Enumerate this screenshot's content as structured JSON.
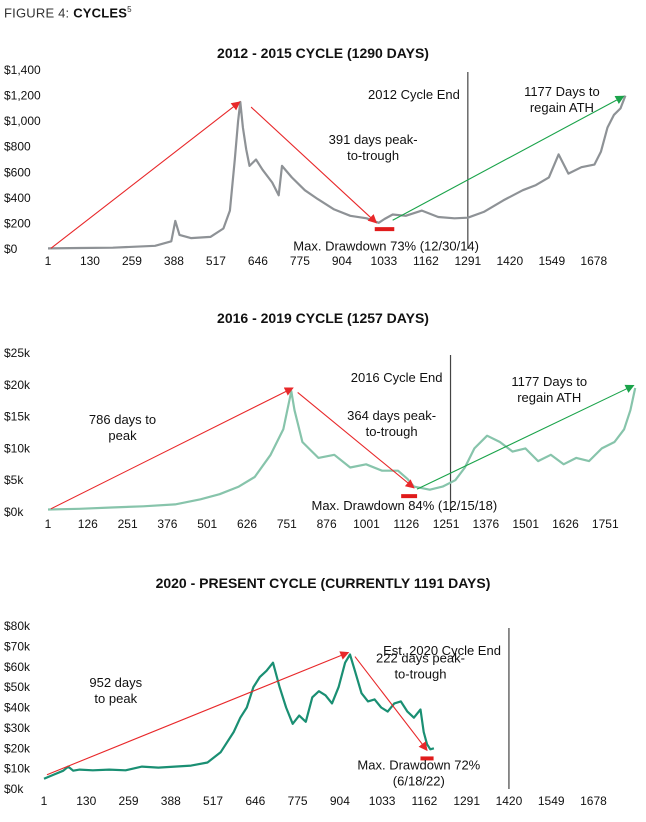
{
  "figure": {
    "prefix": "FIGURE 4:",
    "title": "CYCLES",
    "note": "5"
  },
  "colors": {
    "arrow_red": "#e8282a",
    "arrow_green": "#1aa34a",
    "bar_red": "#e01b1b",
    "cycle_line": "#444444"
  },
  "chart_data": [
    {
      "type": "line",
      "title": "2012 - 2015 CYCLE (1290 DAYS)",
      "series_color": "#8e9296",
      "xlim": [
        1,
        1820
      ],
      "ylim": [
        0,
        1400
      ],
      "x_ticks": [
        1,
        130,
        259,
        388,
        517,
        646,
        775,
        904,
        1033,
        1162,
        1291,
        1420,
        1549,
        1678
      ],
      "y_ticks": [
        0,
        200,
        400,
        600,
        800,
        1000,
        1200,
        1400
      ],
      "y_tick_labels": [
        "$0",
        "$200",
        "$400",
        "$600",
        "$800",
        "$1,000",
        "$1,200",
        "$1,400"
      ],
      "cycle_end_x": 1291,
      "cycle_end_label": "2012 Cycle End",
      "x": [
        1,
        100,
        200,
        330,
        380,
        392,
        405,
        440,
        500,
        540,
        560,
        575,
        585,
        592,
        600,
        610,
        620,
        640,
        660,
        690,
        710,
        720,
        750,
        790,
        830,
        880,
        930,
        980,
        1017,
        1035,
        1060,
        1100,
        1150,
        1200,
        1250,
        1291,
        1340,
        1400,
        1460,
        1500,
        1540,
        1570,
        1600,
        1640,
        1680,
        1700,
        1720,
        1740,
        1760,
        1775
      ],
      "y": [
        5,
        8,
        10,
        25,
        60,
        220,
        110,
        85,
        95,
        160,
        300,
        700,
        1000,
        1150,
        950,
        780,
        650,
        700,
        620,
        520,
        420,
        650,
        560,
        460,
        390,
        310,
        260,
        240,
        205,
        235,
        270,
        260,
        300,
        250,
        240,
        245,
        290,
        380,
        460,
        500,
        560,
        740,
        590,
        640,
        660,
        760,
        950,
        1050,
        1100,
        1200
      ],
      "annotations": [
        {
          "text": [
            "391 days peak-",
            "to-trough"
          ],
          "x": 1000,
          "y": 820
        },
        {
          "text": [
            "1177 Days to",
            "regain ATH"
          ],
          "x": 1580,
          "y": 1195
        },
        {
          "text": [
            "Max. Drawdown 73% (12/30/14)"
          ],
          "x": 1040,
          "y": -10
        }
      ],
      "arrows": [
        {
          "color": "red",
          "from": [
            10,
            5
          ],
          "to": [
            590,
            1150
          ]
        },
        {
          "color": "red",
          "from": [
            625,
            1110
          ],
          "to": [
            1010,
            205
          ]
        },
        {
          "color": "green",
          "from": [
            1060,
            225
          ],
          "to": [
            1770,
            1195
          ]
        }
      ],
      "bottom_marker": {
        "x0": 1005,
        "x1": 1065,
        "y": 155
      }
    },
    {
      "type": "line",
      "title": "2016 - 2019 CYCLE (1257 DAYS)",
      "series_color": "#87c4ab",
      "xlim": [
        1,
        1860
      ],
      "ylim": [
        0,
        25000
      ],
      "x_ticks": [
        1,
        126,
        251,
        376,
        501,
        626,
        751,
        876,
        1001,
        1126,
        1251,
        1376,
        1501,
        1626,
        1751
      ],
      "y_ticks": [
        0,
        5000,
        10000,
        15000,
        20000,
        25000
      ],
      "y_tick_labels": [
        "$0k",
        "$5k",
        "$10k",
        "$15k",
        "$20k",
        "$25k"
      ],
      "cycle_end_x": 1265,
      "cycle_end_label": "2016 Cycle End",
      "x": [
        1,
        100,
        200,
        300,
        400,
        480,
        540,
        600,
        650,
        700,
        740,
        765,
        775,
        785,
        800,
        820,
        850,
        900,
        950,
        1000,
        1050,
        1100,
        1130,
        1150,
        1170,
        1200,
        1240,
        1280,
        1310,
        1340,
        1380,
        1420,
        1460,
        1500,
        1540,
        1580,
        1620,
        1660,
        1700,
        1740,
        1780,
        1810,
        1830,
        1845
      ],
      "y": [
        400,
        500,
        700,
        900,
        1200,
        2000,
        2800,
        4000,
        5500,
        9000,
        13000,
        19000,
        16000,
        14000,
        11000,
        10000,
        8500,
        9000,
        7000,
        7500,
        6500,
        6500,
        5200,
        4000,
        3800,
        3500,
        4000,
        5000,
        7000,
        10000,
        12000,
        11000,
        9500,
        10000,
        8000,
        9000,
        7500,
        8500,
        8000,
        10000,
        11000,
        13000,
        16000,
        19500
      ],
      "annotations": [
        {
          "text": [
            "786 days to",
            "peak"
          ],
          "x": 235,
          "y": 13800
        },
        {
          "text": [
            "364 days peak-",
            "to-trough"
          ],
          "x": 1080,
          "y": 14500
        },
        {
          "text": [
            "1177 Days to",
            "regain ATH"
          ],
          "x": 1575,
          "y": 19800
        },
        {
          "text": [
            "Max. Drawdown 84% (12/15/18)"
          ],
          "x": 1120,
          "y": 300
        }
      ],
      "arrows": [
        {
          "color": "red",
          "from": [
            10,
            500
          ],
          "to": [
            770,
            19500
          ]
        },
        {
          "color": "red",
          "from": [
            785,
            18800
          ],
          "to": [
            1150,
            3800
          ]
        },
        {
          "color": "green",
          "from": [
            1160,
            3600
          ],
          "to": [
            1840,
            19900
          ]
        }
      ],
      "bottom_marker": {
        "x0": 1110,
        "x1": 1160,
        "y": 2500
      }
    },
    {
      "type": "line",
      "title": "2020 - PRESENT CYCLE (CURRENTLY 1191 DAYS)",
      "series_color": "#1a8f73",
      "xlim": [
        1,
        1820
      ],
      "ylim": [
        0,
        80000
      ],
      "x_ticks": [
        1,
        130,
        259,
        388,
        517,
        646,
        775,
        904,
        1033,
        1162,
        1291,
        1420,
        1549,
        1678
      ],
      "y_ticks": [
        0,
        10000,
        20000,
        30000,
        40000,
        50000,
        60000,
        70000,
        80000
      ],
      "y_tick_labels": [
        "$0k",
        "$10k",
        "$20k",
        "$30k",
        "$40k",
        "$50k",
        "$60k",
        "$70k",
        "$80k"
      ],
      "cycle_end_x": 1420,
      "cycle_end_label": "Est. 2020 Cycle End",
      "x": [
        1,
        30,
        60,
        75,
        90,
        110,
        150,
        200,
        250,
        300,
        350,
        400,
        450,
        500,
        540,
        580,
        600,
        620,
        640,
        660,
        680,
        700,
        720,
        740,
        760,
        780,
        800,
        820,
        840,
        860,
        880,
        900,
        920,
        935,
        950,
        970,
        990,
        1010,
        1030,
        1050,
        1070,
        1090,
        1110,
        1130,
        1150,
        1160,
        1170,
        1180,
        1191
      ],
      "y": [
        5000,
        7000,
        9000,
        11000,
        9000,
        9500,
        9200,
        9500,
        9200,
        11000,
        10500,
        11000,
        11500,
        13000,
        18000,
        28000,
        35000,
        40000,
        50000,
        55000,
        58000,
        62000,
        50000,
        40000,
        32000,
        36000,
        33000,
        45000,
        48000,
        46000,
        42000,
        50000,
        62000,
        66000,
        58000,
        47000,
        43000,
        44000,
        40000,
        38000,
        42000,
        43000,
        38000,
        35000,
        39000,
        28000,
        22000,
        19500,
        20000
      ],
      "annotations": [
        {
          "text": [
            "952 days",
            "to peak"
          ],
          "x": 220,
          "y": 50000
        },
        {
          "text": [
            "222 days peak-",
            "to-trough"
          ],
          "x": 1150,
          "y": 62000
        },
        {
          "text": [
            "Max. Drawdown 72%",
            "(6/18/22)"
          ],
          "x": 1145,
          "y": 9500
        }
      ],
      "arrows": [
        {
          "color": "red",
          "from": [
            10,
            7000
          ],
          "to": [
            930,
            67000
          ]
        },
        {
          "color": "red",
          "from": [
            950,
            65000
          ],
          "to": [
            1170,
            19000
          ]
        }
      ],
      "bottom_marker": {
        "x0": 1150,
        "x1": 1190,
        "y": 15000
      }
    }
  ]
}
